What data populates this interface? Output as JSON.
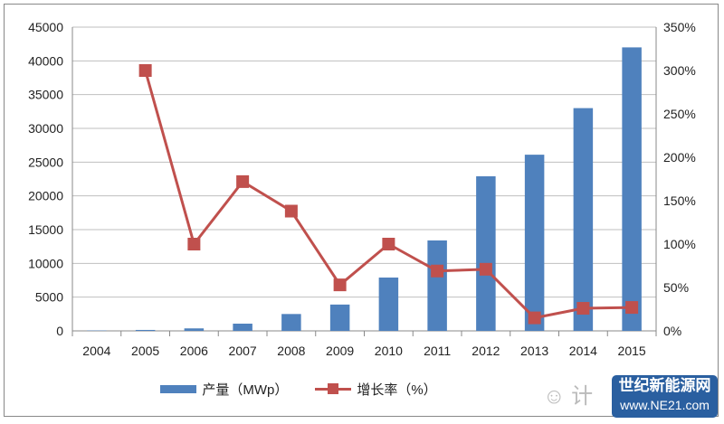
{
  "chart_data": {
    "type": "bar+line",
    "categories": [
      "2004",
      "2005",
      "2006",
      "2007",
      "2008",
      "2009",
      "2010",
      "2011",
      "2012",
      "2013",
      "2014",
      "2015"
    ],
    "series": [
      {
        "name": "产量（MWp）",
        "type": "bar",
        "axis": "left",
        "color": "#4f81bd",
        "values": [
          50,
          140,
          370,
          1070,
          2500,
          3900,
          7900,
          13400,
          22900,
          26100,
          33000,
          42000
        ]
      },
      {
        "name": "增长率（%）",
        "type": "line",
        "axis": "right",
        "color": "#c0504d",
        "values": [
          null,
          300,
          100,
          172,
          138,
          53,
          100,
          69,
          71,
          15,
          26,
          27
        ]
      }
    ],
    "ylim": [
      0,
      45000
    ],
    "y_ticks": [
      "0",
      "5000",
      "10000",
      "15000",
      "20000",
      "25000",
      "30000",
      "35000",
      "40000",
      "45000"
    ],
    "y2lim": [
      0,
      350
    ],
    "y2_ticks": [
      "0%",
      "50%",
      "100%",
      "150%",
      "200%",
      "250%",
      "300%",
      "350%"
    ],
    "grid": true,
    "legend": "bottom"
  },
  "watermark": {
    "wechat": "计",
    "brand": "世纪新能源网",
    "url": "www.NE21.com"
  }
}
